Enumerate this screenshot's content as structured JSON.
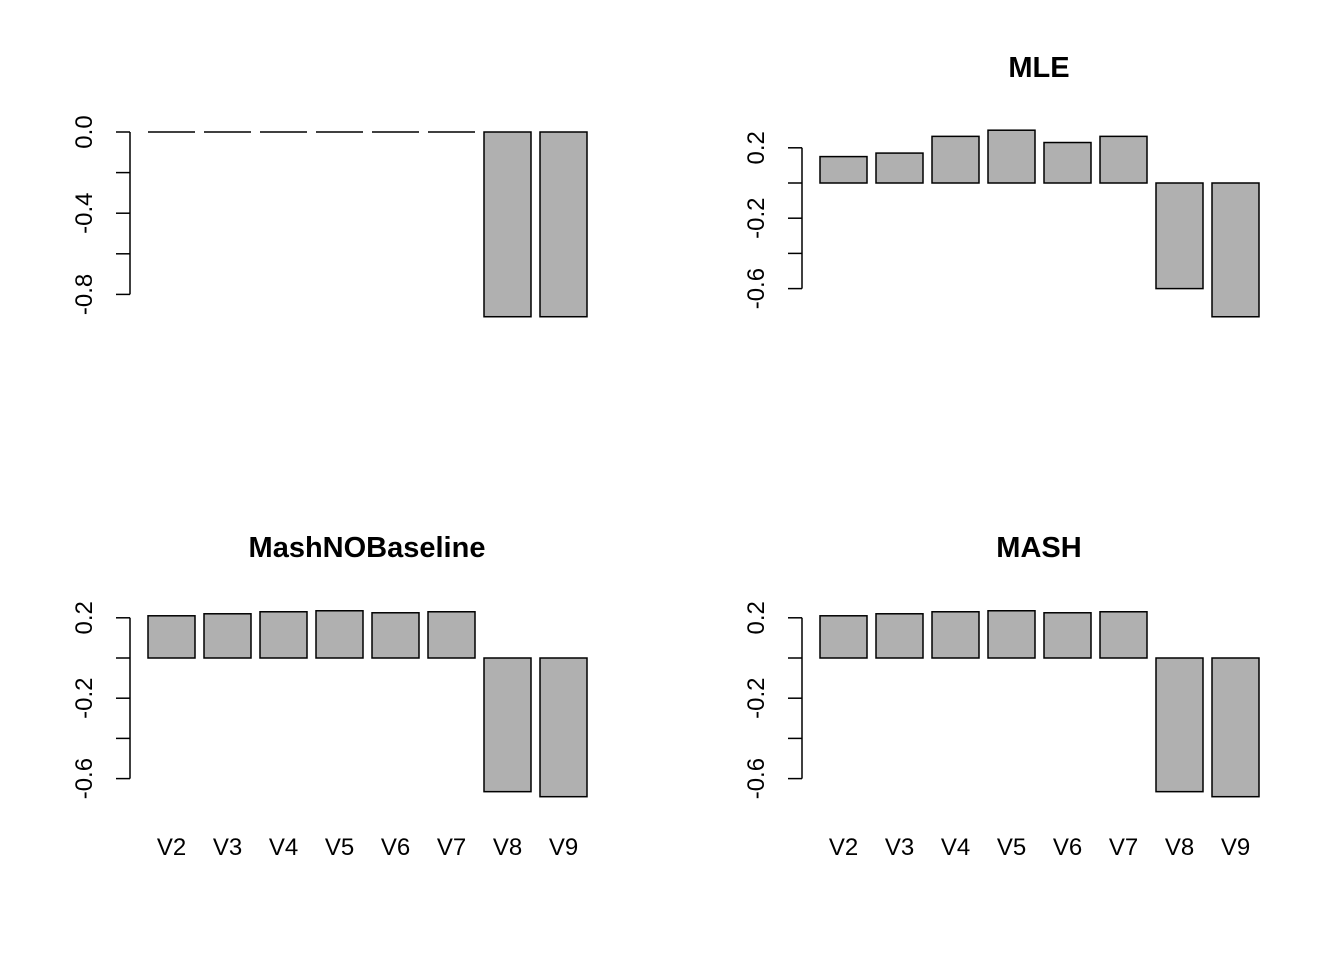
{
  "chart_data": [
    {
      "type": "bar",
      "title": "",
      "categories": [
        "V2",
        "V3",
        "V4",
        "V5",
        "V6",
        "V7",
        "V8",
        "V9"
      ],
      "values": [
        0,
        0,
        0,
        0,
        0,
        0,
        -0.91,
        -0.91
      ],
      "yticks": [
        0.0,
        -0.2,
        -0.4,
        -0.6,
        -0.8
      ],
      "ytick_labels": [
        "0.0",
        "",
        "-0.4",
        "",
        "-0.8"
      ],
      "show_categories": false
    },
    {
      "type": "bar",
      "title": "MLE",
      "categories": [
        "V2",
        "V3",
        "V4",
        "V5",
        "V6",
        "V7",
        "V8",
        "V9"
      ],
      "values": [
        0.15,
        0.17,
        0.265,
        0.3,
        0.23,
        0.265,
        -0.6,
        -0.76
      ],
      "yticks": [
        0.2,
        0.0,
        -0.2,
        -0.4,
        -0.6
      ],
      "ytick_labels": [
        "0.2",
        "",
        "-0.2",
        "",
        "-0.6"
      ],
      "show_categories": false
    },
    {
      "type": "bar",
      "title": "MashNOBaseline",
      "categories": [
        "V2",
        "V3",
        "V4",
        "V5",
        "V6",
        "V7",
        "V8",
        "V9"
      ],
      "values": [
        0.21,
        0.22,
        0.23,
        0.235,
        0.225,
        0.23,
        -0.665,
        -0.69
      ],
      "yticks": [
        0.2,
        0.0,
        -0.2,
        -0.4,
        -0.6
      ],
      "ytick_labels": [
        "0.2",
        "",
        "-0.2",
        "",
        "-0.6"
      ],
      "show_categories": true
    },
    {
      "type": "bar",
      "title": "MASH",
      "categories": [
        "V2",
        "V3",
        "V4",
        "V5",
        "V6",
        "V7",
        "V8",
        "V9"
      ],
      "values": [
        0.21,
        0.22,
        0.23,
        0.235,
        0.225,
        0.23,
        -0.665,
        -0.69
      ],
      "yticks": [
        0.2,
        0.0,
        -0.2,
        -0.4,
        -0.6
      ],
      "ytick_labels": [
        "0.2",
        "",
        "-0.2",
        "",
        "-0.6"
      ],
      "show_categories": true
    }
  ]
}
